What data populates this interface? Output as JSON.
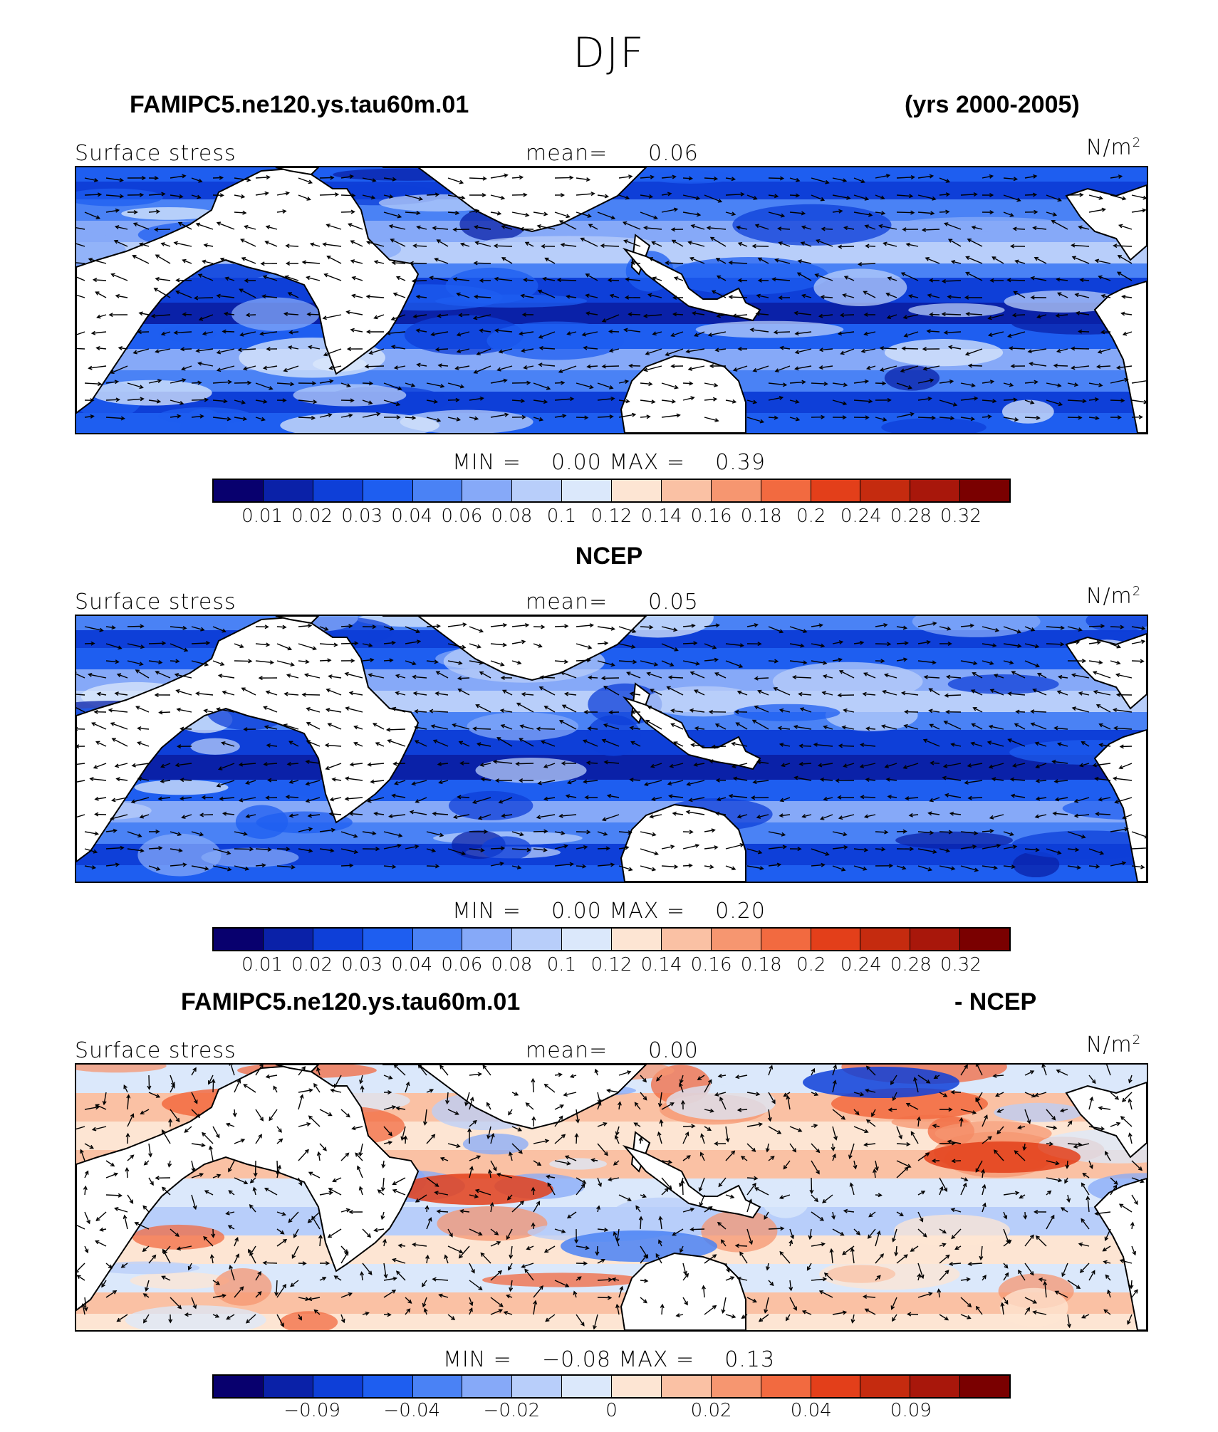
{
  "title": "DJF",
  "header": {
    "left": "FAMIPC5.ne120.ys.tau60m.01",
    "right": "(yrs 2000-2005)"
  },
  "colors": [
    "#08006e",
    "#0a21a8",
    "#0e3fd8",
    "#1e5ef0",
    "#4a82f5",
    "#86a9f8",
    "#b8cefa",
    "#dbe8fb",
    "#fde5d3",
    "#fac1a4",
    "#f69670",
    "#f26a40",
    "#e33f1a",
    "#c52b0f",
    "#a8170b",
    "#7a0000"
  ],
  "continent_color": "#ffffff",
  "panels": [
    {
      "heading_left": "",
      "heading_right": "",
      "field": "Surface stress",
      "mean_label": "mean=",
      "mean_value": "0.06",
      "units": "N/m",
      "units_sup": "2",
      "min_label": "MIN =",
      "min_value": "0.00",
      "max_label": "MAX =",
      "max_value": "0.39",
      "tick_labels": [
        "0.01",
        "0.02",
        "0.03",
        "0.04",
        "0.06",
        "0.08",
        "0.1",
        "0.12",
        "0.14",
        "0.16",
        "0.18",
        "0.2",
        "0.24",
        "0.28",
        "0.32"
      ],
      "kind": "model"
    },
    {
      "heading_left": "NCEP",
      "heading_right": "",
      "field": "Surface stress",
      "mean_label": "mean=",
      "mean_value": "0.05",
      "units": "N/m",
      "units_sup": "2",
      "min_label": "MIN =",
      "min_value": "0.00",
      "max_label": "MAX =",
      "max_value": "0.20",
      "tick_labels": [
        "0.01",
        "0.02",
        "0.03",
        "0.04",
        "0.06",
        "0.08",
        "0.1",
        "0.12",
        "0.14",
        "0.16",
        "0.18",
        "0.2",
        "0.24",
        "0.28",
        "0.32"
      ],
      "kind": "obs"
    },
    {
      "heading_left": "FAMIPC5.ne120.ys.tau60m.01",
      "heading_right": "- NCEP",
      "field": "Surface stress",
      "mean_label": "mean=",
      "mean_value": "0.00",
      "units": "N/m",
      "units_sup": "2",
      "min_label": "MIN =",
      "min_value": "−0.08",
      "max_label": "MAX =",
      "max_value": "0.13",
      "tick_labels": [
        "−0.09",
        "−0.04",
        "−0.02",
        "0",
        "0.02",
        "0.04",
        "0.09"
      ],
      "kind": "diff"
    }
  ]
}
